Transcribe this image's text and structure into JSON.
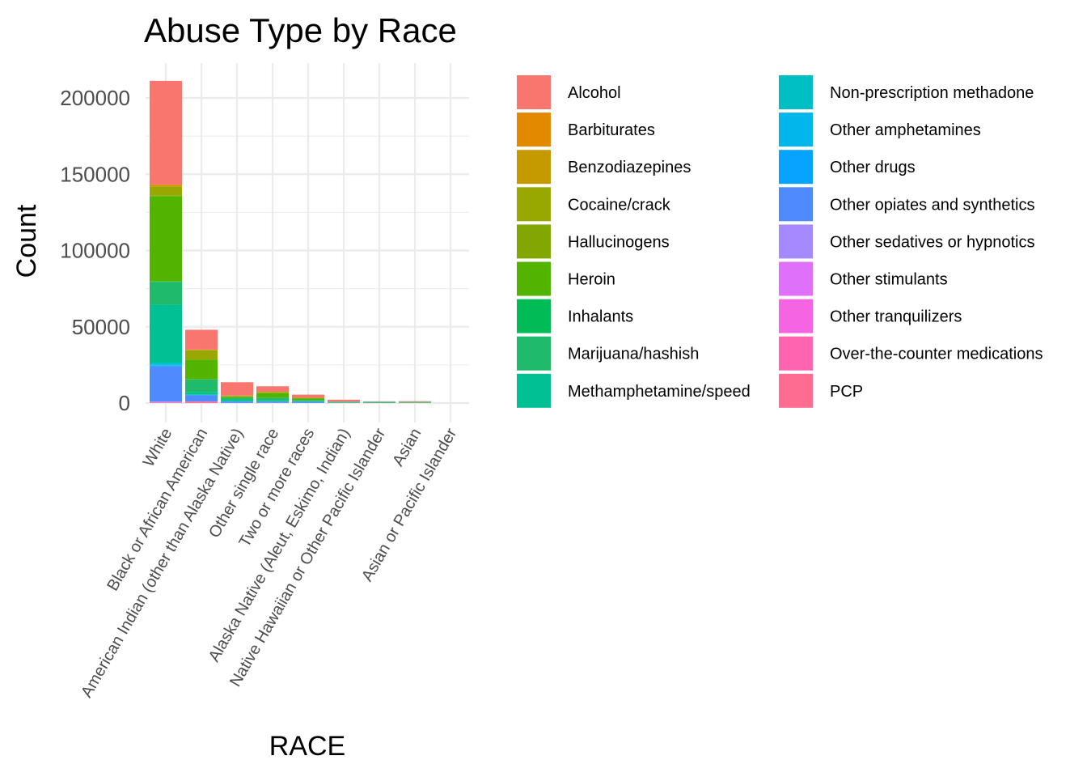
{
  "chart_data": {
    "type": "bar",
    "stacked": true,
    "title": "Abuse Type by Race",
    "xlabel": "RACE",
    "ylabel": "Count",
    "ylim": [
      0,
      222000
    ],
    "y_ticks": [
      0,
      50000,
      100000,
      150000,
      200000
    ],
    "grid": true,
    "legend_position": "right",
    "categories": [
      "White",
      "Black or African American",
      "American Indian (other than Alaska Native)",
      "Other single race",
      "Two or more races",
      "Alaska Native (Aleut, Eskimo, Indian)",
      "Native Hawaiian or Other Pacific Islander",
      "Asian",
      "Asian or Pacific Islander"
    ],
    "series": [
      {
        "name": "Alcohol",
        "color": "#F8766D",
        "values": [
          68000,
          13000,
          8800,
          3600,
          2000,
          1200,
          300,
          400,
          30
        ]
      },
      {
        "name": "Barbiturates",
        "color": "#E38900",
        "values": [
          300,
          100,
          50,
          20,
          10,
          10,
          5,
          5,
          0
        ]
      },
      {
        "name": "Benzodiazepines",
        "color": "#C49A00",
        "values": [
          1200,
          300,
          100,
          100,
          50,
          20,
          10,
          20,
          0
        ]
      },
      {
        "name": "Cocaine/crack",
        "color": "#99A800",
        "values": [
          5500,
          6000,
          300,
          700,
          300,
          50,
          30,
          80,
          0
        ]
      },
      {
        "name": "Hallucinogens",
        "color": "#82A700",
        "values": [
          500,
          100,
          50,
          50,
          20,
          10,
          5,
          10,
          0
        ]
      },
      {
        "name": "Heroin",
        "color": "#53B400",
        "values": [
          56000,
          13000,
          1000,
          3000,
          1200,
          150,
          100,
          150,
          0
        ]
      },
      {
        "name": "Inhalants",
        "color": "#00BC56",
        "values": [
          200,
          50,
          20,
          10,
          10,
          5,
          5,
          5,
          0
        ]
      },
      {
        "name": "Marijuana/hashish",
        "color": "#1FBB6A",
        "values": [
          15000,
          8500,
          1200,
          1800,
          800,
          300,
          150,
          200,
          10
        ]
      },
      {
        "name": "Methamphetamine/speed",
        "color": "#00C094",
        "values": [
          38000,
          1500,
          1000,
          700,
          300,
          200,
          400,
          150,
          0
        ]
      },
      {
        "name": "Non-prescription methadone",
        "color": "#00BFC4",
        "values": [
          1200,
          150,
          50,
          50,
          30,
          10,
          5,
          5,
          0
        ]
      },
      {
        "name": "Other amphetamines",
        "color": "#00B6EB",
        "values": [
          800,
          100,
          50,
          30,
          20,
          10,
          10,
          10,
          0
        ]
      },
      {
        "name": "Other drugs",
        "color": "#06A4FF",
        "values": [
          500,
          200,
          50,
          50,
          30,
          10,
          10,
          10,
          0
        ]
      },
      {
        "name": "Other opiates and synthetics",
        "color": "#4F8AFF",
        "values": [
          23000,
          4000,
          900,
          800,
          700,
          200,
          100,
          150,
          0
        ]
      },
      {
        "name": "Other sedatives or hypnotics",
        "color": "#A58AFF",
        "values": [
          300,
          50,
          20,
          20,
          10,
          5,
          5,
          5,
          0
        ]
      },
      {
        "name": "Other stimulants",
        "color": "#DF70F8",
        "values": [
          200,
          50,
          20,
          10,
          10,
          5,
          5,
          5,
          0
        ]
      },
      {
        "name": "Other tranquilizers",
        "color": "#F564E3",
        "values": [
          50,
          10,
          5,
          5,
          5,
          0,
          0,
          0,
          0
        ]
      },
      {
        "name": "Over-the-counter medications",
        "color": "#FF64B0",
        "values": [
          150,
          30,
          10,
          10,
          5,
          0,
          0,
          5,
          0
        ]
      },
      {
        "name": "PCP",
        "color": "#FF6C91",
        "values": [
          300,
          900,
          30,
          50,
          30,
          5,
          5,
          5,
          0
        ]
      }
    ]
  }
}
